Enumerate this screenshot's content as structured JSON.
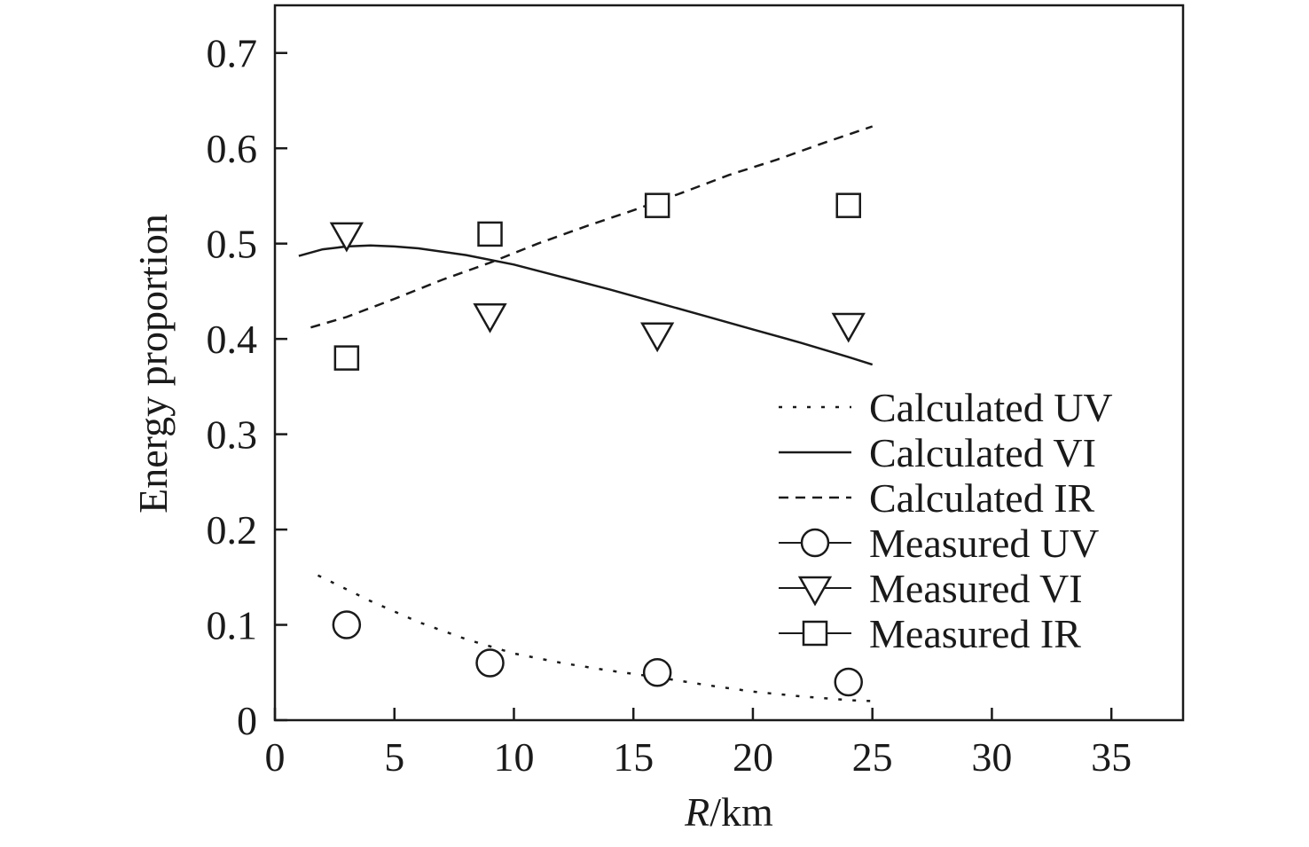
{
  "chart_data": {
    "type": "line",
    "xlabel_italic": "R",
    "xlabel_rest": "/km",
    "ylabel": "Energy proportion",
    "xlim": [
      0,
      38
    ],
    "ylim": [
      0,
      0.75
    ],
    "xticks": [
      0,
      5,
      10,
      15,
      20,
      25,
      30,
      35
    ],
    "yticks": [
      0,
      0.1,
      0.2,
      0.3,
      0.4,
      0.5,
      0.6,
      0.7
    ],
    "xtick_labels": [
      "0",
      "5",
      "10",
      "15",
      "20",
      "25",
      "30",
      "35"
    ],
    "ytick_labels": [
      "0",
      "0.1",
      "0.2",
      "0.3",
      "0.4",
      "0.5",
      "0.6",
      "0.7"
    ],
    "grid": false,
    "legend_position": "bottom-right",
    "series": [
      {
        "name": "Calculated UV",
        "kind": "line",
        "style": "dotted",
        "x": [
          1.8,
          4,
          6,
          8,
          10,
          12,
          14,
          16,
          18,
          20,
          22,
          24,
          25
        ],
        "y": [
          0.152,
          0.125,
          0.103,
          0.085,
          0.07,
          0.06,
          0.052,
          0.045,
          0.037,
          0.03,
          0.025,
          0.021,
          0.02
        ]
      },
      {
        "name": "Calculated VI",
        "kind": "line",
        "style": "solid",
        "x": [
          1,
          2,
          3,
          4,
          5,
          6,
          8,
          10,
          12,
          14,
          16,
          18,
          20,
          22,
          24,
          25
        ],
        "y": [
          0.487,
          0.494,
          0.497,
          0.498,
          0.497,
          0.495,
          0.488,
          0.478,
          0.465,
          0.452,
          0.438,
          0.424,
          0.41,
          0.396,
          0.381,
          0.373
        ]
      },
      {
        "name": "Calculated IR",
        "kind": "line",
        "style": "dashed",
        "x": [
          1.5,
          3,
          5,
          7,
          9,
          11,
          13,
          15,
          17,
          19,
          21,
          23,
          25
        ],
        "y": [
          0.412,
          0.423,
          0.442,
          0.462,
          0.48,
          0.5,
          0.518,
          0.535,
          0.553,
          0.572,
          0.588,
          0.606,
          0.623
        ]
      },
      {
        "name": "Measured UV",
        "kind": "scatter",
        "marker": "circle",
        "x": [
          3,
          9,
          16,
          24
        ],
        "y": [
          0.1,
          0.06,
          0.05,
          0.04
        ]
      },
      {
        "name": "Measured VI",
        "kind": "scatter",
        "marker": "triangle-down",
        "x": [
          3,
          9,
          16,
          24
        ],
        "y": [
          0.51,
          0.425,
          0.405,
          0.415
        ]
      },
      {
        "name": "Measured IR",
        "kind": "scatter",
        "marker": "square",
        "x": [
          3,
          9,
          16,
          24
        ],
        "y": [
          0.38,
          0.51,
          0.54,
          0.54
        ]
      }
    ]
  },
  "colors": {
    "ink": "#1a1a1a",
    "background": "#ffffff"
  }
}
